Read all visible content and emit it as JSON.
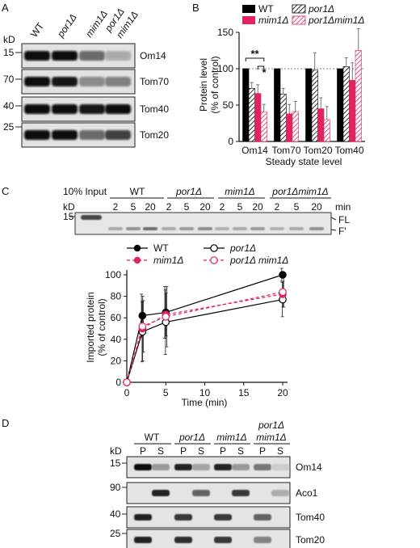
{
  "panels": {
    "a": "A",
    "b": "B",
    "c": "C",
    "d": "D"
  },
  "colors": {
    "wt": "#000000",
    "mutant": "#e0245e",
    "hatch_por1": "#000000",
    "hatch_double": "#e0245e"
  },
  "panel_a": {
    "kd": "kD",
    "lanes": [
      "WT",
      "por1Δ",
      "mim1Δ",
      "por1Δ mim1Δ"
    ],
    "lane_last_line1": "por1Δ",
    "lane_last_line2": "mim1Δ",
    "mw": [
      "15",
      "70",
      "40",
      "25"
    ],
    "proteins": [
      "Om14",
      "Tom70",
      "Tom40",
      "Tom20"
    ],
    "band_levels": {
      "Om14": [
        1.0,
        1.0,
        0.55,
        0.25
      ],
      "Tom70": [
        1.0,
        0.95,
        0.4,
        0.45
      ],
      "Tom40": [
        1.0,
        1.0,
        0.95,
        1.0
      ],
      "Tom20": [
        1.0,
        1.0,
        0.55,
        0.75
      ]
    }
  },
  "panel_c_blot": {
    "input_label": "10% Input",
    "kd": "kD",
    "mw": "15",
    "groups": [
      "WT",
      "por1Δ",
      "mim1Δ",
      "por1Δmim1Δ"
    ],
    "times": [
      "2",
      "5",
      "20",
      "2",
      "5",
      "20",
      "2",
      "5",
      "20",
      "2",
      "5",
      "20"
    ],
    "min": "min",
    "fl": "FL",
    "fprime": "F'"
  },
  "chart_data": [
    {
      "type": "bar",
      "panel": "B",
      "title": "",
      "xlabel": "Steady state level",
      "ylabel": "Protein level (% of control)",
      "ylabel_line1": "Protein  level",
      "ylabel_line2": "(% of control)",
      "ylim": [
        0,
        150
      ],
      "yticks": [
        "0",
        "50",
        "100",
        "150"
      ],
      "reference_line": 100,
      "legend": [
        "WT",
        "por1Δ",
        "mim1Δ",
        "por1Δmim1Δ"
      ],
      "legend_placement": "top",
      "categories": [
        "Om14",
        "Tom70",
        "Tom20",
        "Tom40"
      ],
      "series": [
        {
          "name": "WT",
          "values": [
            100,
            100,
            100,
            100
          ],
          "errors": [
            0,
            0,
            0,
            0
          ]
        },
        {
          "name": "por1Δ",
          "values": [
            73,
            65,
            98,
            103
          ],
          "errors": [
            8,
            8,
            24,
            12
          ]
        },
        {
          "name": "mim1Δ",
          "values": [
            66,
            38,
            45,
            84
          ],
          "errors": [
            12,
            13,
            15,
            24
          ]
        },
        {
          "name": "por1Δmim1Δ",
          "values": [
            41,
            41,
            30,
            125
          ],
          "errors": [
            10,
            14,
            18,
            30
          ]
        }
      ],
      "significance": [
        "**",
        "*"
      ]
    },
    {
      "type": "line",
      "panel": "C",
      "title": "",
      "xlabel": "Time (min)",
      "ylabel": "Imported protein (% of control)",
      "ylabel_line1": "Imported protein",
      "ylabel_line2": "(% of control)",
      "xlim": [
        0,
        20
      ],
      "ylim": [
        0,
        100
      ],
      "xticks": [
        "0",
        "5",
        "10",
        "15",
        "20"
      ],
      "yticks": [
        "0",
        "20",
        "40",
        "60",
        "80",
        "100"
      ],
      "legend": [
        "WT",
        "por1Δ",
        "mim1Δ",
        "por1Δ mim1Δ"
      ],
      "legend_placement": "top",
      "x": [
        0,
        2,
        5,
        20
      ],
      "series": [
        {
          "name": "WT",
          "values": [
            0,
            62,
            65,
            100
          ],
          "errors": [
            0,
            20,
            24,
            6
          ]
        },
        {
          "name": "por1Δ",
          "values": [
            0,
            47,
            56,
            77
          ],
          "errors": [
            0,
            28,
            30,
            16
          ]
        },
        {
          "name": "mim1Δ",
          "values": [
            0,
            50,
            63,
            82
          ],
          "errors": [
            0,
            30,
            20,
            12
          ]
        },
        {
          "name": "por1Δ mim1Δ",
          "values": [
            0,
            52,
            61,
            84
          ],
          "errors": [
            0,
            24,
            28,
            14
          ]
        }
      ]
    }
  ],
  "panel_d": {
    "kd": "kD",
    "groups": [
      "WT",
      "por1Δ",
      "mim1Δ"
    ],
    "group_last_line1": "por1Δ",
    "group_last_line2": "mim1Δ",
    "fractions": [
      "P",
      "S",
      "P",
      "S",
      "P",
      "S",
      "P",
      "S"
    ],
    "mw": [
      "15",
      "90",
      "40",
      "25"
    ],
    "proteins": [
      "Om14",
      "Aco1",
      "Tom40",
      "Tom20"
    ],
    "band_levels": {
      "Om14": [
        1.0,
        0.35,
        0.9,
        0.3,
        0.9,
        0.35,
        0.5,
        0.1
      ],
      "Aco1": [
        0.0,
        0.9,
        0.0,
        0.6,
        0.0,
        0.8,
        0.0,
        0.25
      ],
      "Tom40": [
        0.9,
        0.0,
        0.8,
        0.0,
        0.8,
        0.0,
        0.6,
        0.0
      ],
      "Tom20": [
        0.9,
        0.0,
        0.85,
        0.0,
        0.8,
        0.0,
        0.45,
        0.0
      ]
    }
  }
}
